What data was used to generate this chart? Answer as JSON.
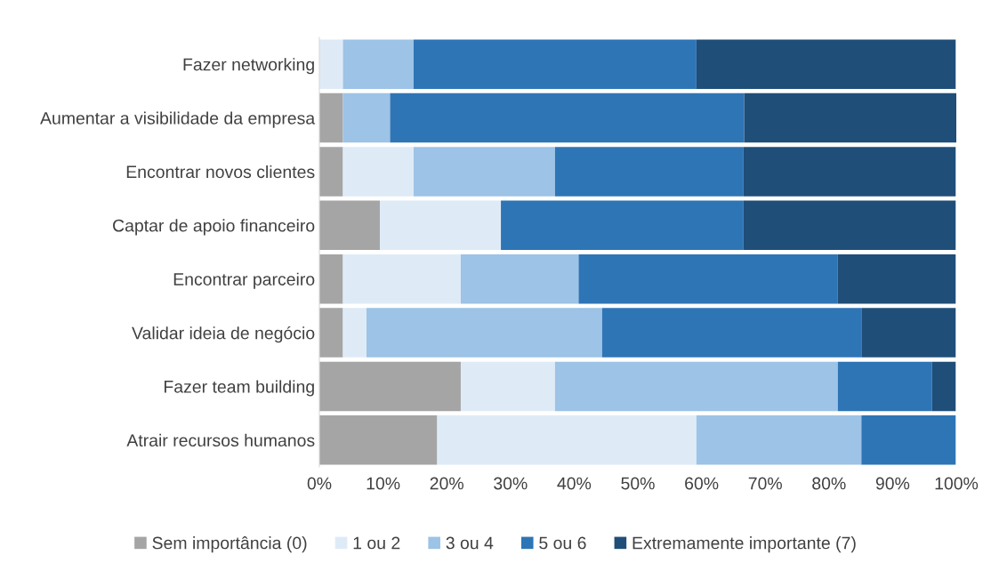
{
  "chart_data": {
    "type": "bar",
    "orientation": "horizontal",
    "stacked": true,
    "categories": [
      "Fazer networking",
      "Aumentar a visibilidade da empresa",
      "Encontrar novos clientes",
      "Captar de apoio financeiro",
      "Encontrar parceiro",
      "Validar ideia de negócio",
      "Fazer team building",
      "Atrair recursos humanos"
    ],
    "series": [
      {
        "name": "Sem importância (0)",
        "color": "#a5a5a5",
        "values": [
          0,
          3.7,
          3.7,
          9.5,
          3.7,
          3.7,
          22.2,
          18.5
        ]
      },
      {
        "name": "1 ou 2",
        "color": "#deebf7",
        "values": [
          3.7,
          0,
          11.1,
          19.0,
          18.5,
          3.7,
          14.8,
          40.7
        ]
      },
      {
        "name": "3 ou 4",
        "color": "#9dc3e6",
        "values": [
          11.1,
          7.4,
          22.2,
          0,
          18.5,
          37.0,
          44.4,
          25.9
        ]
      },
      {
        "name": "5 ou 6",
        "color": "#2e75b6",
        "values": [
          44.4,
          55.6,
          29.6,
          38.1,
          40.7,
          40.7,
          14.8,
          14.8
        ]
      },
      {
        "name": "Extremamente importante (7)",
        "color": "#1f4e79",
        "values": [
          40.7,
          33.3,
          33.3,
          33.3,
          18.5,
          14.8,
          3.7,
          0
        ]
      }
    ],
    "xlim": [
      0,
      100
    ],
    "xticks": [
      {
        "value": 0,
        "label": "0%"
      },
      {
        "value": 10,
        "label": "10%"
      },
      {
        "value": 20,
        "label": "20%"
      },
      {
        "value": 30,
        "label": "30%"
      },
      {
        "value": 40,
        "label": "40%"
      },
      {
        "value": 50,
        "label": "50%"
      },
      {
        "value": 60,
        "label": "60%"
      },
      {
        "value": 70,
        "label": "70%"
      },
      {
        "value": 80,
        "label": "80%"
      },
      {
        "value": 90,
        "label": "90%"
      },
      {
        "value": 100,
        "label": "100%"
      }
    ],
    "grid": false,
    "legend": "bottom"
  }
}
